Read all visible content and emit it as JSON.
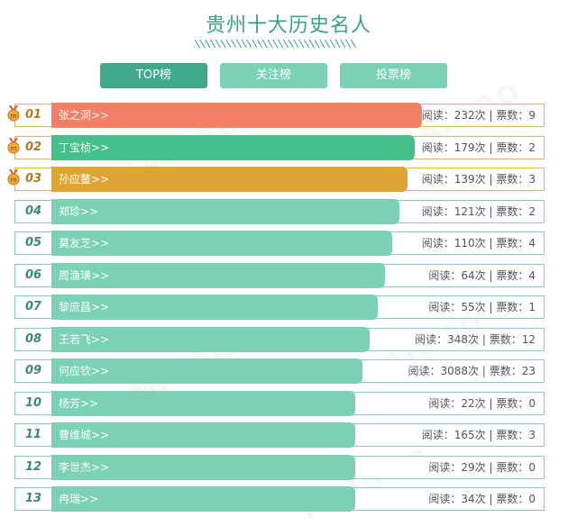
{
  "page": {
    "title": "贵州十大历史名人"
  },
  "tabs": [
    {
      "label": "TOP榜",
      "active": true
    },
    {
      "label": "关注榜",
      "active": false
    },
    {
      "label": "投票榜",
      "active": false
    }
  ],
  "labels": {
    "read_prefix": "阅读：",
    "read_suffix": "次",
    "separator": " | ",
    "vote_prefix": "票数：",
    "arrow": ">>"
  },
  "watermark": "MAIGOO",
  "colors": {
    "top1": "#f47f66",
    "top2": "#45c08a",
    "top3": "#dfa534",
    "default": "#7ad1b4"
  },
  "rows": [
    {
      "rank": "01",
      "name": "张之洞",
      "reads": "232",
      "votes": "9",
      "bar_fraction": 0.75,
      "color": "#f47f66",
      "medal": true
    },
    {
      "rank": "02",
      "name": "丁宝桢",
      "reads": "179",
      "votes": "2",
      "bar_fraction": 0.735,
      "color": "#45c08a",
      "medal": true
    },
    {
      "rank": "03",
      "name": "孙应鳌",
      "reads": "139",
      "votes": "3",
      "bar_fraction": 0.72,
      "color": "#dfa534",
      "medal": true
    },
    {
      "rank": "04",
      "name": "郑珍",
      "reads": "121",
      "votes": "2",
      "bar_fraction": 0.705,
      "color": "#7ad1b4",
      "medal": false
    },
    {
      "rank": "05",
      "name": "莫友芝",
      "reads": "110",
      "votes": "4",
      "bar_fraction": 0.69,
      "color": "#7ad1b4",
      "medal": false
    },
    {
      "rank": "06",
      "name": "周渔璜",
      "reads": "64",
      "votes": "4",
      "bar_fraction": 0.675,
      "color": "#7ad1b4",
      "medal": false
    },
    {
      "rank": "07",
      "name": "黎庶昌",
      "reads": "55",
      "votes": "1",
      "bar_fraction": 0.66,
      "color": "#7ad1b4",
      "medal": false
    },
    {
      "rank": "08",
      "name": "王若飞",
      "reads": "348",
      "votes": "12",
      "bar_fraction": 0.645,
      "color": "#7ad1b4",
      "medal": false
    },
    {
      "rank": "09",
      "name": "何应钦",
      "reads": "3088",
      "votes": "23",
      "bar_fraction": 0.63,
      "color": "#7ad1b4",
      "medal": false
    },
    {
      "rank": "10",
      "name": "杨芳",
      "reads": "22",
      "votes": "0",
      "bar_fraction": 0.615,
      "color": "#7ad1b4",
      "medal": false
    },
    {
      "rank": "11",
      "name": "曹维城",
      "reads": "165",
      "votes": "3",
      "bar_fraction": 0.615,
      "color": "#7ad1b4",
      "medal": false
    },
    {
      "rank": "12",
      "name": "李世杰",
      "reads": "29",
      "votes": "0",
      "bar_fraction": 0.615,
      "color": "#7ad1b4",
      "medal": false
    },
    {
      "rank": "13",
      "name": "冉瑞",
      "reads": "34",
      "votes": "0",
      "bar_fraction": 0.615,
      "color": "#7ad1b4",
      "medal": false
    }
  ]
}
